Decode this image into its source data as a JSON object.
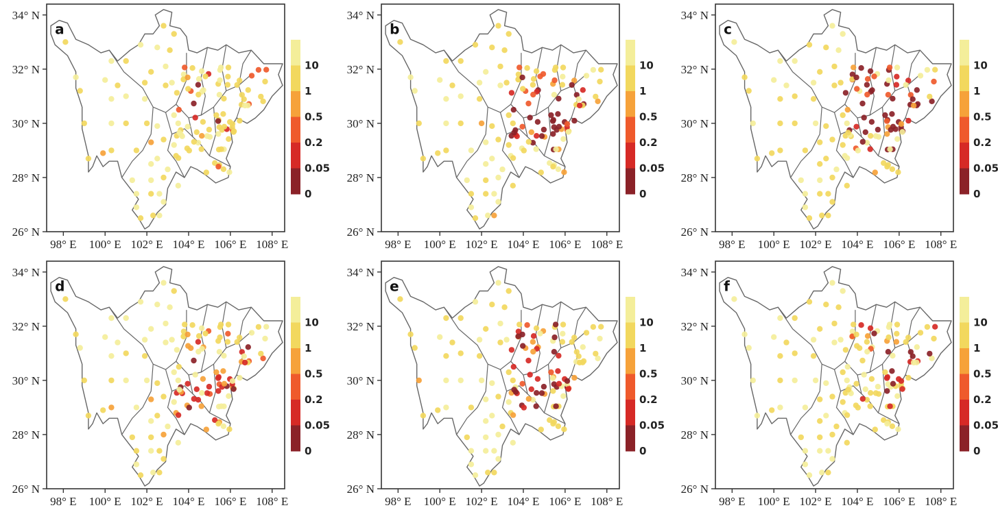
{
  "chart_data": {
    "type": "scatter",
    "subtype": "map-station-scatter",
    "xlabel": "",
    "ylabel": "",
    "xlim": [
      97.2,
      108.6
    ],
    "ylim": [
      26,
      34.4
    ],
    "x_ticks": [
      "98° E",
      "100° E",
      "102° E",
      "104° E",
      "106° E",
      "108° E"
    ],
    "x_tick_values": [
      98,
      100,
      102,
      104,
      106,
      108
    ],
    "y_ticks": [
      "26° N",
      "28° N",
      "30° N",
      "32° N",
      "34° N"
    ],
    "y_tick_values": [
      26,
      28,
      30,
      32,
      34
    ],
    "colorbar": {
      "labels": [
        "10",
        "1",
        "0.5",
        "0.2",
        "0.05",
        "0"
      ],
      "colors": [
        "#f4ee9a",
        "#f2d85e",
        "#f6a23a",
        "#ef5a2c",
        "#d62a26",
        "#8b2228"
      ]
    },
    "panels": [
      {
        "label": "a",
        "dark_share": 0.02,
        "red_share": 0.04,
        "orange_share": 0.12,
        "hotspot": [
          103.8,
          30.2
        ]
      },
      {
        "label": "b",
        "dark_share": 0.28,
        "red_share": 0.1,
        "orange_share": 0.12,
        "hotspot": [
          105.0,
          30.3
        ]
      },
      {
        "label": "c",
        "dark_share": 0.32,
        "red_share": 0.1,
        "orange_share": 0.1,
        "hotspot": [
          105.4,
          30.6
        ]
      },
      {
        "label": "d",
        "dark_share": 0.06,
        "red_share": 0.2,
        "orange_share": 0.22,
        "hotspot": [
          105.0,
          29.8
        ]
      },
      {
        "label": "e",
        "dark_share": 0.26,
        "red_share": 0.14,
        "orange_share": 0.12,
        "hotspot": [
          104.2,
          30.4
        ]
      },
      {
        "label": "f",
        "dark_share": 0.12,
        "red_share": 0.08,
        "orange_share": 0.06,
        "hotspot": [
          106.0,
          30.6
        ]
      }
    ]
  }
}
